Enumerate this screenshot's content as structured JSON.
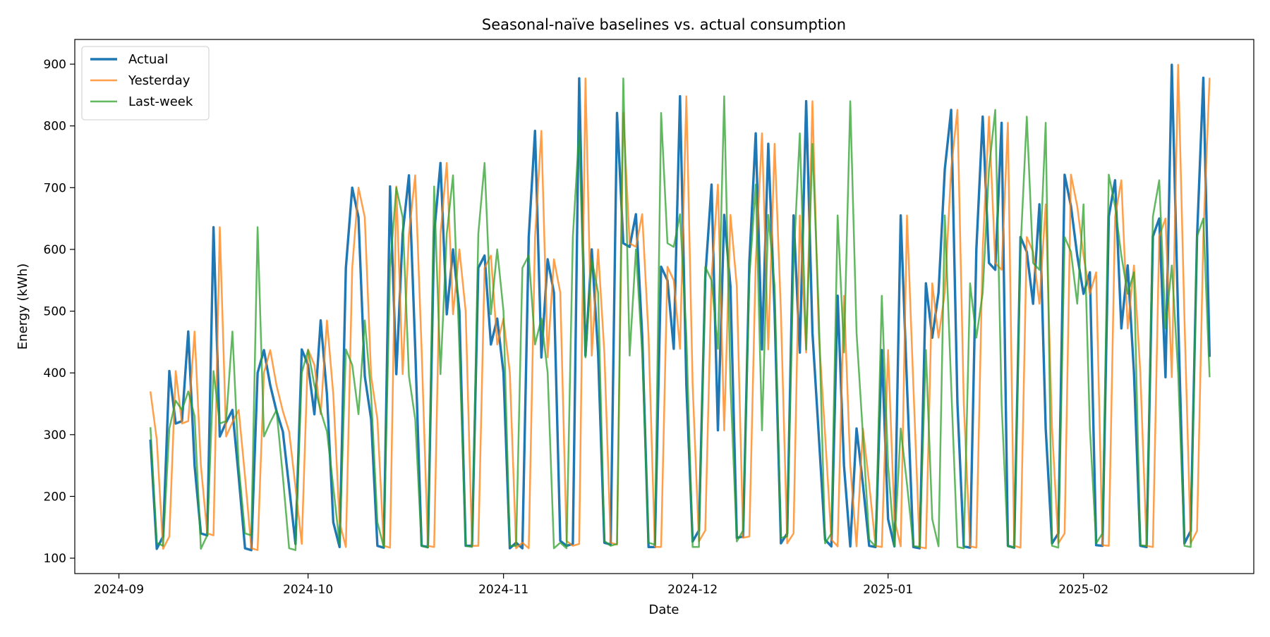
{
  "chart_data": {
    "type": "line",
    "title": "Seasonal-naïve baselines vs. actual consumption",
    "xlabel": "Date",
    "ylabel": "Energy (kWh)",
    "xlim": [
      "2024-08-25",
      "2025-02-28"
    ],
    "ylim": [
      75,
      940
    ],
    "x_ticks": [
      {
        "date": "2024-09-01",
        "label": "2024-09"
      },
      {
        "date": "2024-10-01",
        "label": "2024-10"
      },
      {
        "date": "2024-11-01",
        "label": "2024-11"
      },
      {
        "date": "2024-12-01",
        "label": "2024-12"
      },
      {
        "date": "2025-01-01",
        "label": "2025-01"
      },
      {
        "date": "2025-02-01",
        "label": "2025-02"
      }
    ],
    "y_ticks": [
      100,
      200,
      300,
      400,
      500,
      600,
      700,
      800,
      900
    ],
    "grid": false,
    "legend": "top-left",
    "start_date": "2024-09-06",
    "series": [
      {
        "name": "Actual",
        "color": "#1f77b4",
        "values": [
          292,
          115,
          135,
          403,
          318,
          322,
          467,
          250,
          140,
          137,
          636,
          297,
          320,
          340,
          232,
          116,
          113,
          400,
          437,
          380,
          338,
          305,
          215,
          123,
          438,
          413,
          333,
          485,
          365,
          158,
          118,
          570,
          700,
          652,
          395,
          325,
          120,
          117,
          702,
          398,
          625,
          720,
          440,
          120,
          118,
          625,
          740,
          495,
          600,
          500,
          120,
          120,
          570,
          590,
          446,
          488,
          400,
          116,
          125,
          116,
          620,
          792,
          425,
          584,
          530,
          128,
          120,
          123,
          877,
          428,
          600,
          432,
          125,
          122,
          821,
          610,
          604,
          657,
          460,
          118,
          118,
          572,
          550,
          439,
          848,
          380,
          127,
          145,
          555,
          705,
          307,
          656,
          540,
          133,
          135,
          580,
          788,
          438,
          771,
          498,
          124,
          140,
          655,
          433,
          840,
          465,
          300,
          130,
          119,
          525,
          250,
          119,
          310,
          220,
          120,
          118,
          437,
          163,
          119,
          655,
          380,
          118,
          116,
          545,
          457,
          530,
          730,
          826,
          350,
          119,
          117,
          600,
          815,
          578,
          567,
          805,
          120,
          117,
          620,
          596,
          512,
          673,
          310,
          124,
          140,
          721,
          670,
          590,
          528,
          563,
          121,
          120,
          653,
          712,
          472,
          574,
          400,
          120,
          118,
          621,
          650,
          393,
          899,
          490,
          124,
          144,
          620,
          878,
          426
        ]
      },
      {
        "name": "Yesterday",
        "color": "#ff7f0e",
        "values": [
          370,
          292,
          115,
          135,
          403,
          318,
          322,
          467,
          250,
          140,
          137,
          636,
          297,
          320,
          340,
          232,
          116,
          113,
          400,
          437,
          380,
          338,
          305,
          215,
          123,
          438,
          413,
          333,
          485,
          365,
          158,
          118,
          570,
          700,
          652,
          395,
          325,
          120,
          117,
          702,
          398,
          625,
          720,
          440,
          120,
          118,
          625,
          740,
          495,
          600,
          500,
          120,
          120,
          570,
          590,
          446,
          488,
          400,
          116,
          125,
          116,
          620,
          792,
          425,
          584,
          530,
          128,
          120,
          123,
          877,
          428,
          600,
          432,
          125,
          122,
          821,
          610,
          604,
          657,
          460,
          118,
          118,
          572,
          550,
          439,
          848,
          380,
          127,
          145,
          555,
          705,
          307,
          656,
          540,
          133,
          135,
          580,
          788,
          438,
          771,
          498,
          124,
          140,
          655,
          433,
          840,
          465,
          300,
          130,
          119,
          525,
          250,
          119,
          310,
          220,
          120,
          118,
          437,
          163,
          119,
          655,
          380,
          118,
          116,
          545,
          457,
          530,
          730,
          826,
          350,
          119,
          117,
          600,
          815,
          578,
          567,
          805,
          120,
          117,
          620,
          596,
          512,
          673,
          310,
          124,
          140,
          721,
          670,
          590,
          528,
          563,
          121,
          120,
          653,
          712,
          472,
          574,
          400,
          120,
          118,
          621,
          650,
          393,
          899,
          490,
          124,
          144,
          620,
          878
        ]
      },
      {
        "name": "Last-week",
        "color": "#2ca02c",
        "values": [
          312,
          125,
          120,
          310,
          355,
          340,
          370,
          330,
          115,
          137,
          403,
          318,
          322,
          467,
          250,
          140,
          137,
          636,
          297,
          320,
          340,
          232,
          116,
          113,
          400,
          437,
          380,
          338,
          305,
          215,
          123,
          438,
          413,
          333,
          485,
          365,
          158,
          118,
          570,
          700,
          652,
          395,
          325,
          120,
          117,
          702,
          398,
          625,
          720,
          440,
          120,
          118,
          625,
          740,
          495,
          600,
          500,
          120,
          120,
          570,
          590,
          446,
          488,
          400,
          116,
          125,
          116,
          620,
          792,
          425,
          584,
          530,
          128,
          120,
          123,
          877,
          428,
          600,
          432,
          125,
          122,
          821,
          610,
          604,
          657,
          460,
          118,
          118,
          572,
          550,
          439,
          848,
          380,
          127,
          145,
          555,
          705,
          307,
          656,
          540,
          133,
          135,
          580,
          788,
          438,
          771,
          498,
          124,
          140,
          655,
          433,
          840,
          465,
          300,
          130,
          119,
          525,
          250,
          119,
          310,
          220,
          120,
          118,
          437,
          163,
          119,
          655,
          380,
          118,
          116,
          545,
          457,
          530,
          730,
          826,
          350,
          119,
          117,
          600,
          815,
          578,
          567,
          805,
          120,
          117,
          620,
          596,
          512,
          673,
          310,
          124,
          140,
          721,
          670,
          590,
          528,
          563,
          121,
          120,
          653,
          712,
          472,
          574,
          400,
          120,
          118,
          621,
          650,
          393
        ]
      }
    ]
  }
}
